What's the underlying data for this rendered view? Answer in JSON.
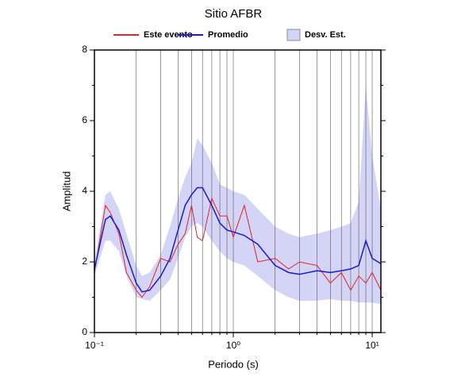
{
  "chart_data": {
    "type": "line",
    "title": "Sitio AFBR",
    "xlabel": "Periodo (s)",
    "ylabel": "Amplitud",
    "xscale": "log",
    "xlim": [
      0.1,
      11.55
    ],
    "ylim": [
      0,
      8
    ],
    "xticks": [
      {
        "value": 0.1,
        "label": "10⁻¹"
      },
      {
        "value": 1,
        "label": "10⁰"
      },
      {
        "value": 10,
        "label": "10¹"
      }
    ],
    "yticks": [
      0,
      2,
      4,
      6,
      8
    ],
    "yminor": [
      1,
      3,
      5,
      7
    ],
    "xgrid": [
      0.2,
      0.3,
      0.4,
      0.5,
      0.6,
      0.7,
      0.8,
      0.9,
      1,
      2,
      3,
      4,
      5,
      6,
      7,
      8,
      9,
      10
    ],
    "legend": "top",
    "x": [
      0.1,
      0.12,
      0.13,
      0.15,
      0.17,
      0.2,
      0.22,
      0.25,
      0.3,
      0.35,
      0.4,
      0.45,
      0.5,
      0.55,
      0.6,
      0.7,
      0.8,
      0.9,
      1,
      1.2,
      1.5,
      2,
      2.5,
      3,
      4,
      5,
      6,
      7,
      8,
      9,
      10,
      11.55
    ],
    "series": [
      {
        "name": "Este evento",
        "color": "#e8222a",
        "values": [
          1.7,
          3.6,
          3.4,
          2.8,
          1.7,
          1.2,
          1.0,
          1.3,
          2.1,
          2.0,
          2.5,
          2.8,
          3.6,
          2.7,
          2.6,
          3.8,
          3.3,
          3.3,
          2.7,
          3.6,
          2.0,
          2.1,
          1.8,
          2.0,
          1.9,
          1.4,
          1.7,
          1.2,
          1.6,
          1.4,
          1.7,
          1.2
        ]
      },
      {
        "name": "Promedio",
        "color": "#1a1acc",
        "values": [
          1.8,
          3.2,
          3.3,
          2.9,
          2.2,
          1.4,
          1.15,
          1.2,
          1.6,
          2.1,
          2.9,
          3.6,
          3.9,
          4.1,
          4.1,
          3.6,
          3.1,
          2.9,
          2.85,
          2.75,
          2.5,
          1.9,
          1.7,
          1.65,
          1.75,
          1.7,
          1.75,
          1.8,
          1.9,
          2.6,
          2.1,
          1.95
        ]
      },
      {
        "name": "Desv. Est.",
        "color": "#d4d4f7",
        "kind": "band",
        "upper": [
          2.0,
          3.9,
          4.0,
          3.5,
          2.8,
          1.9,
          1.6,
          1.7,
          2.2,
          3.0,
          3.8,
          4.4,
          4.8,
          5.5,
          5.3,
          4.8,
          4.2,
          4.1,
          4.0,
          3.9,
          3.5,
          3.0,
          2.8,
          2.7,
          2.8,
          2.9,
          3.0,
          3.1,
          3.7,
          7.0,
          5.0,
          3.5
        ],
        "lower": [
          1.6,
          2.6,
          2.6,
          2.3,
          1.6,
          1.0,
          0.95,
          0.9,
          1.2,
          1.5,
          2.1,
          2.7,
          3.0,
          3.1,
          3.0,
          2.6,
          2.3,
          2.1,
          2.0,
          1.9,
          1.6,
          1.2,
          1.0,
          0.9,
          0.9,
          0.95,
          0.9,
          0.9,
          0.85,
          0.85,
          0.85,
          0.8
        ]
      }
    ]
  }
}
